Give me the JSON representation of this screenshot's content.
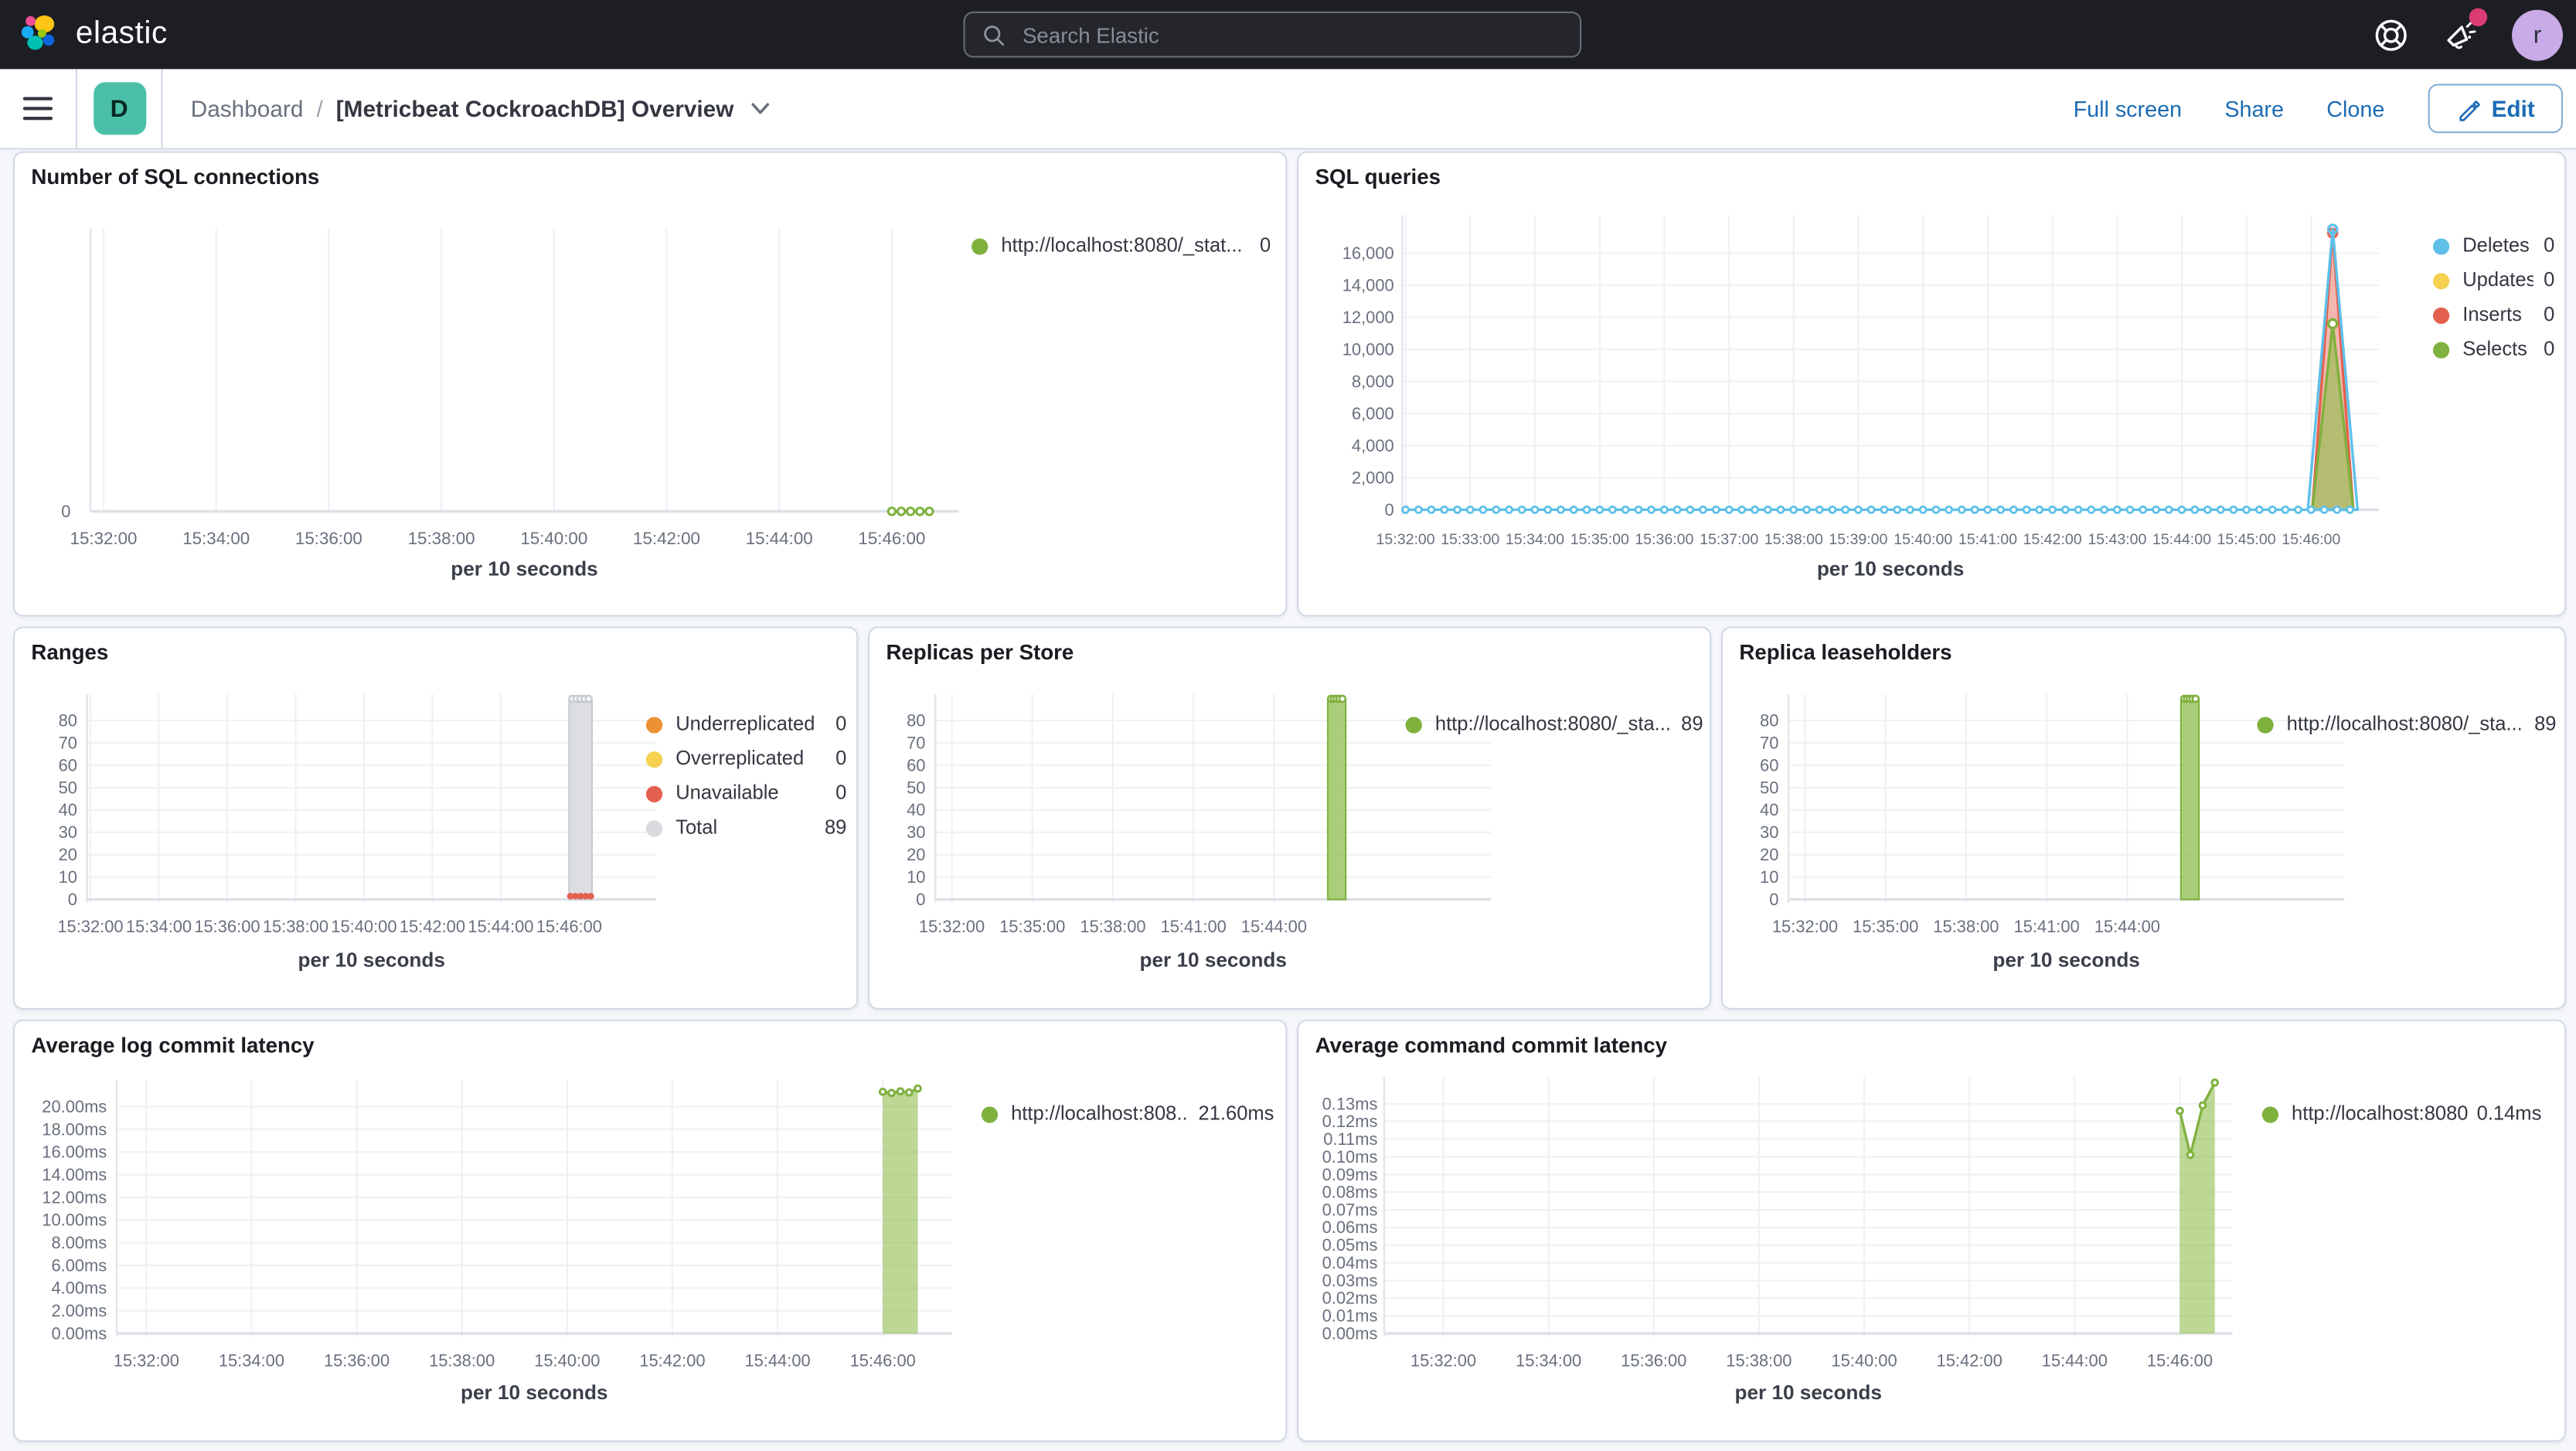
{
  "topbar": {
    "brand": "elastic",
    "search": {
      "placeholder": "Search Elastic"
    },
    "avatar": "r"
  },
  "toolbar": {
    "app_badge": "D",
    "breadcrumbs": [
      "Dashboard",
      "[Metricbeat CockroachDB] Overview"
    ],
    "actions": [
      "Full screen",
      "Share",
      "Clone"
    ],
    "edit": "Edit"
  },
  "colors": {
    "accent_pink": "#DC3C74",
    "badge_teal": "#4BC0A8",
    "link_blue": "#1C6CB4",
    "avatar_purple": "#C9ABE8",
    "series_green": "#7FB13E",
    "series_blue": "#5FC0E9",
    "series_yellow": "#F5D14F",
    "series_red": "#E4604E",
    "series_orange": "#EB9234",
    "series_gray": "#D9DBDF"
  },
  "panels": [
    {
      "id": "number-of-sql-connections",
      "title": "Number of SQL connections",
      "x_label": "per 10 seconds",
      "x_ticks": [
        "15:32:00",
        "15:34:00",
        "15:36:00",
        "15:38:00",
        "15:40:00",
        "15:42:00",
        "15:44:00",
        "15:46:00"
      ],
      "y_ticks": [
        "0"
      ],
      "legend": [
        {
          "label": "http://localhost:8080/_stat...",
          "value": "0",
          "color": "#7FB13E"
        }
      ]
    },
    {
      "id": "sql-queries",
      "title": "SQL queries",
      "x_label": "per 10 seconds",
      "x_ticks": [
        "15:32:00",
        "15:33:00",
        "15:34:00",
        "15:35:00",
        "15:36:00",
        "15:37:00",
        "15:38:00",
        "15:39:00",
        "15:40:00",
        "15:41:00",
        "15:42:00",
        "15:43:00",
        "15:44:00",
        "15:45:00",
        "15:46:00"
      ],
      "y_ticks": [
        "0",
        "2,000",
        "4,000",
        "6,000",
        "8,000",
        "10,000",
        "12,000",
        "14,000",
        "16,000"
      ],
      "legend": [
        {
          "label": "Deletes",
          "value": "0",
          "color": "#5FC0E9"
        },
        {
          "label": "Updates",
          "value": "0",
          "color": "#F5D14F"
        },
        {
          "label": "Inserts",
          "value": "0",
          "color": "#E4604E"
        },
        {
          "label": "Selects",
          "value": "0",
          "color": "#7FB13E"
        }
      ]
    },
    {
      "id": "ranges",
      "title": "Ranges",
      "x_label": "per 10 seconds",
      "x_ticks": [
        "15:32:00",
        "15:34:00",
        "15:36:00",
        "15:38:00",
        "15:40:00",
        "15:42:00",
        "15:44:00",
        "15:46:00"
      ],
      "y_ticks": [
        "0",
        "10",
        "20",
        "30",
        "40",
        "50",
        "60",
        "70",
        "80"
      ],
      "legend": [
        {
          "label": "Underreplicated",
          "value": "0",
          "color": "#EB9234"
        },
        {
          "label": "Overreplicated",
          "value": "0",
          "color": "#F5D14F"
        },
        {
          "label": "Unavailable",
          "value": "0",
          "color": "#E4604E"
        },
        {
          "label": "Total",
          "value": "89",
          "color": "#D9DBDF"
        }
      ]
    },
    {
      "id": "replicas-per-store",
      "title": "Replicas per Store",
      "x_label": "per 10 seconds",
      "x_ticks": [
        "15:32:00",
        "15:35:00",
        "15:38:00",
        "15:41:00",
        "15:44:00"
      ],
      "y_ticks": [
        "0",
        "10",
        "20",
        "30",
        "40",
        "50",
        "60",
        "70",
        "80"
      ],
      "legend": [
        {
          "label": "http://localhost:8080/_sta...",
          "value": "89",
          "color": "#7FB13E"
        }
      ]
    },
    {
      "id": "replica-leaseholders",
      "title": "Replica leaseholders",
      "x_label": "per 10 seconds",
      "x_ticks": [
        "15:32:00",
        "15:35:00",
        "15:38:00",
        "15:41:00",
        "15:44:00"
      ],
      "y_ticks": [
        "0",
        "10",
        "20",
        "30",
        "40",
        "50",
        "60",
        "70",
        "80"
      ],
      "legend": [
        {
          "label": "http://localhost:8080/_sta...",
          "value": "89",
          "color": "#7FB13E"
        }
      ]
    },
    {
      "id": "average-log-commit-latency",
      "title": "Average log commit latency",
      "x_label": "per 10 seconds",
      "x_ticks": [
        "15:32:00",
        "15:34:00",
        "15:36:00",
        "15:38:00",
        "15:40:00",
        "15:42:00",
        "15:44:00",
        "15:46:00"
      ],
      "y_ticks": [
        "0.00ms",
        "2.00ms",
        "4.00ms",
        "6.00ms",
        "8.00ms",
        "10.00ms",
        "12.00ms",
        "14.00ms",
        "16.00ms",
        "18.00ms",
        "20.00ms"
      ],
      "legend": [
        {
          "label": "http://localhost:808...",
          "value": "21.60ms",
          "color": "#7FB13E"
        }
      ]
    },
    {
      "id": "average-command-commit-latency",
      "title": "Average command commit latency",
      "x_label": "per 10 seconds",
      "x_ticks": [
        "15:32:00",
        "15:34:00",
        "15:36:00",
        "15:38:00",
        "15:40:00",
        "15:42:00",
        "15:44:00",
        "15:46:00"
      ],
      "y_ticks": [
        "0.00ms",
        "0.01ms",
        "0.02ms",
        "0.03ms",
        "0.04ms",
        "0.05ms",
        "0.06ms",
        "0.07ms",
        "0.08ms",
        "0.09ms",
        "0.10ms",
        "0.11ms",
        "0.12ms",
        "0.13ms"
      ],
      "legend": [
        {
          "label": "http://localhost:8080...",
          "value": "0.14ms",
          "color": "#7FB13E"
        }
      ]
    }
  ],
  "chart_data": [
    {
      "panel": "Number of SQL connections",
      "type": "line",
      "xlabel": "per 10 seconds",
      "series": [
        {
          "name": "http://localhost:8080/_stat...",
          "draw": "line",
          "color": "#7FB13E",
          "points": [
            [
              "15:46:00",
              0
            ],
            [
              "15:46:10",
              0
            ],
            [
              "15:46:20",
              0
            ],
            [
              "15:46:30",
              0
            ],
            [
              "15:46:40",
              0
            ]
          ]
        }
      ]
    },
    {
      "panel": "SQL queries",
      "type": "area",
      "xlabel": "per 10 seconds",
      "ylim": [
        0,
        17800
      ],
      "series": [
        {
          "name": "Inserts",
          "draw": "spike",
          "color": "#E4604E",
          "fill": "rgba(228,96,78,0.45)",
          "from": "15:46:01",
          "peak": [
            "15:46:20",
            17250
          ],
          "to": "15:46:39",
          "marker": true,
          "marker_fill": "none"
        },
        {
          "name": "Selects",
          "draw": "spike",
          "color": "#7FB13E",
          "fill": "rgba(143,190,77,0.62)",
          "from": "15:46:01",
          "peak": [
            "15:46:20",
            11600
          ],
          "to": "15:46:39",
          "marker": true
        },
        {
          "name": "Deletes",
          "draw": "spike",
          "color": "#5FC0E9",
          "fill": "none",
          "from": "15:45:57",
          "peak": [
            "15:46:20",
            17500
          ],
          "to": "15:46:43",
          "marker": true,
          "marker_fill": "none"
        },
        {
          "name": "Deletes baseline",
          "draw": "flat",
          "color": "#5FC0E9",
          "from": "15:32:00",
          "to": "15:46:40",
          "value": 0,
          "marker_every_s": 12
        }
      ]
    },
    {
      "panel": "Ranges",
      "type": "bar",
      "xlabel": "per 10 seconds",
      "ylim": [
        0,
        89
      ],
      "series": [
        {
          "name": "Total",
          "draw": "bar",
          "color": "#DCDEE2",
          "stroke": "#C7CAD1",
          "from": "15:46:00",
          "to": "15:46:40",
          "value": 89,
          "top_markers": 5
        },
        {
          "name": "Unavailable",
          "draw": "dots",
          "color": "#E4604E",
          "from": "15:46:02",
          "to": "15:46:38",
          "value": 0,
          "count": 5
        }
      ]
    },
    {
      "panel": "Replicas per Store",
      "type": "bar",
      "xlabel": "per 10 seconds",
      "ylim": [
        0,
        89
      ],
      "series": [
        {
          "name": "http://localhost:8080/_sta...",
          "draw": "bar",
          "color": "rgba(143,190,77,0.75)",
          "stroke": "#7FB13E",
          "from": "15:46:00",
          "to": "15:46:40",
          "value": 89,
          "top_markers": 5
        }
      ]
    },
    {
      "panel": "Replica leaseholders",
      "type": "bar",
      "xlabel": "per 10 seconds",
      "ylim": [
        0,
        89
      ],
      "series": [
        {
          "name": "http://localhost:8080/_sta...",
          "draw": "bar",
          "color": "rgba(143,190,77,0.75)",
          "stroke": "#7FB13E",
          "from": "15:46:00",
          "to": "15:46:40",
          "value": 89,
          "top_markers": 5
        }
      ]
    },
    {
      "panel": "Average log commit latency",
      "type": "area",
      "xlabel": "per 10 seconds",
      "ylim": [
        0,
        21.6
      ],
      "series": [
        {
          "name": "http://localhost:808...",
          "draw": "area",
          "color": "#7FB13E",
          "fill": "rgba(143,190,77,0.6)",
          "points": [
            [
              "15:46:00",
              21.3
            ],
            [
              "15:46:10",
              21.2
            ],
            [
              "15:46:20",
              21.35
            ],
            [
              "15:46:30",
              21.25
            ],
            [
              "15:46:40",
              21.6
            ]
          ]
        }
      ]
    },
    {
      "panel": "Average command commit latency",
      "type": "area",
      "xlabel": "per 10 seconds",
      "ylim": [
        0,
        0.14
      ],
      "series": [
        {
          "name": "http://localhost:8080...",
          "draw": "area",
          "color": "#7FB13E",
          "fill": "rgba(143,190,77,0.6)",
          "points": [
            [
              "15:46:00",
              0.126
            ],
            [
              "15:46:12",
              0.101
            ],
            [
              "15:46:26",
              0.129
            ],
            [
              "15:46:40",
              0.142
            ]
          ]
        }
      ]
    }
  ]
}
